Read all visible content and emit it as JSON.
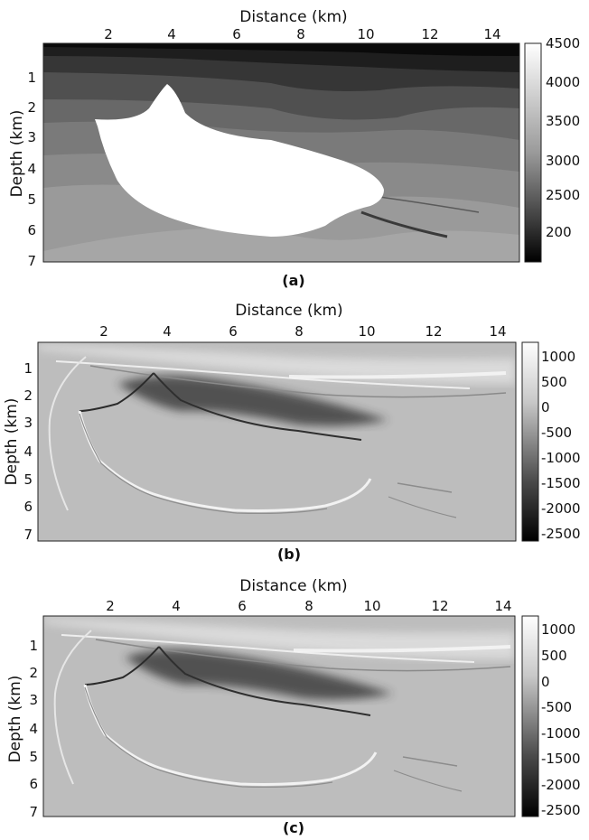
{
  "panels": [
    {
      "caption": "(a)",
      "xlabel": "Distance (km)",
      "ylabel": "Depth (km)",
      "x_ticks": [
        "2",
        "4",
        "6",
        "8",
        "10",
        "12",
        "14"
      ],
      "y_ticks": [
        "1",
        "2",
        "3",
        "4",
        "5",
        "6",
        "7"
      ],
      "colorbar_ticks": [
        "4500",
        "4000",
        "3500",
        "3000",
        "2500",
        "200"
      ]
    },
    {
      "caption": "(b)",
      "xlabel": "Distance (km)",
      "ylabel": "Depth (km)",
      "x_ticks": [
        "2",
        "4",
        "6",
        "8",
        "10",
        "12",
        "14"
      ],
      "y_ticks": [
        "1",
        "2",
        "3",
        "4",
        "5",
        "6",
        "7"
      ],
      "colorbar_ticks": [
        "1000",
        "500",
        "0",
        "-500",
        "-1000",
        "-1500",
        "-2000",
        "-2500"
      ]
    },
    {
      "caption": "(c)",
      "xlabel": "Distance (km)",
      "ylabel": "Depth (km)",
      "x_ticks": [
        "2",
        "4",
        "6",
        "8",
        "10",
        "12",
        "14"
      ],
      "y_ticks": [
        "1",
        "2",
        "3",
        "4",
        "5",
        "6",
        "7"
      ],
      "colorbar_ticks": [
        "1000",
        "500",
        "0",
        "-500",
        "-1000",
        "-1500",
        "-2000",
        "-2500"
      ]
    }
  ],
  "colors": {
    "background": "#ffffff",
    "salt": "#ffffff",
    "image_background": "#bdbdbd",
    "colormap_low": "#000000",
    "colormap_high": "#ffffff"
  }
}
